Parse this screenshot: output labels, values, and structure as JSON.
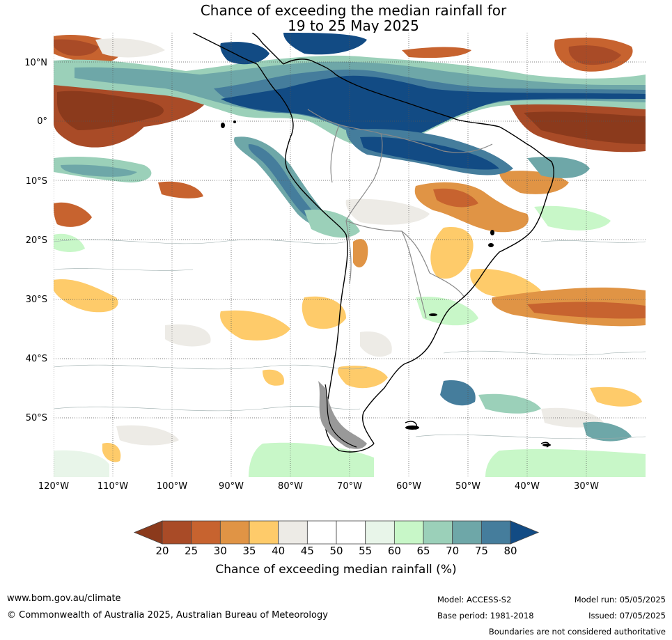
{
  "title": {
    "line1": "Chance of exceeding the median rainfall for",
    "line2": "19 to 25 May 2025"
  },
  "axes": {
    "lat_labels": [
      "10°N",
      "0°",
      "10°S",
      "20°S",
      "30°S",
      "40°S",
      "50°S"
    ],
    "lon_labels": [
      "120°W",
      "110°W",
      "100°W",
      "90°W",
      "80°W",
      "70°W",
      "60°W",
      "50°W",
      "40°W",
      "30°W"
    ]
  },
  "colorbar": {
    "ticks": [
      "20",
      "25",
      "30",
      "35",
      "40",
      "45",
      "50",
      "55",
      "60",
      "65",
      "70",
      "75",
      "80"
    ],
    "colors": [
      "#8b3a1c",
      "#a94b27",
      "#c7632f",
      "#e09445",
      "#fecb6a",
      "#edebe6",
      "#ffffff",
      "#ffffff",
      "#e8f5e9",
      "#c8f7c8",
      "#9bd0b9",
      "#6ea7a8",
      "#457d9c",
      "#124b84"
    ],
    "label": "Chance of exceeding median rainfall (%)"
  },
  "footer": {
    "website": "www.bom.gov.au/climate",
    "copyright": "© Commonwealth of Australia 2025, Australian Bureau of Meteorology",
    "model": "Model: ACCESS-S2",
    "base_period": "Base period: 1981-2018",
    "model_run": "Model run: 05/05/2025",
    "issued": "Issued: 07/05/2025",
    "disclaimer": "Boundaries are not considered authoritative"
  }
}
